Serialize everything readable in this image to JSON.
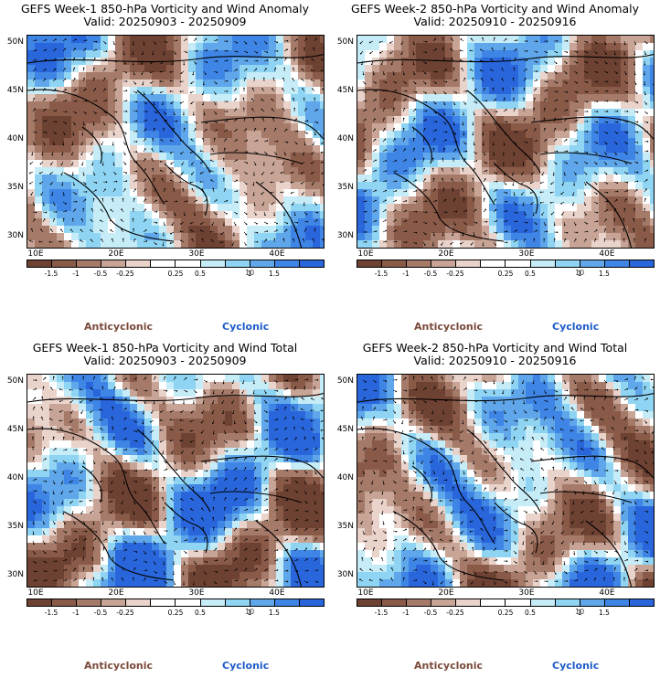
{
  "colors": {
    "anticyclonic": "#7a4a3a",
    "cyclonic": "#1e5cc8",
    "colorbar": [
      "#6e4233",
      "#8a5a49",
      "#a57a69",
      "#c7a496",
      "#e9d3ca",
      "#ffffff",
      "#ffffff",
      "#c6ecf8",
      "#8fd5f3",
      "#5fa7ea",
      "#3f85e6",
      "#2a66db"
    ]
  },
  "colorbar_ticks": [
    "-1.5",
    "-1",
    "-0.5",
    "-0.25",
    "0.25",
    "0.5",
    "1",
    "1.5"
  ],
  "scale_text": "10",
  "lat_labels": [
    "50N",
    "45N",
    "40N",
    "35N",
    "30N"
  ],
  "lon_labels": [
    "10E",
    "20E",
    "30E",
    "40E"
  ],
  "legend": {
    "anticyclonic": "Anticyclonic",
    "cyclonic": "Cyclonic"
  },
  "panels": [
    {
      "title": "GEFS Week-1 850-hPa Vorticity and Wind Anomaly",
      "valid": "Valid: 20250903 - 20250909"
    },
    {
      "title": "GEFS Week-2 850-hPa Vorticity and Wind Anomaly",
      "valid": "Valid: 20250910 - 20250916"
    },
    {
      "title": "GEFS Week-1 850-hPa Vorticity and Wind Total",
      "valid": "Valid: 20250903 - 20250909"
    },
    {
      "title": "GEFS Week-2 850-hPa Vorticity and Wind Total",
      "valid": "Valid: 20250910 - 20250916"
    }
  ]
}
